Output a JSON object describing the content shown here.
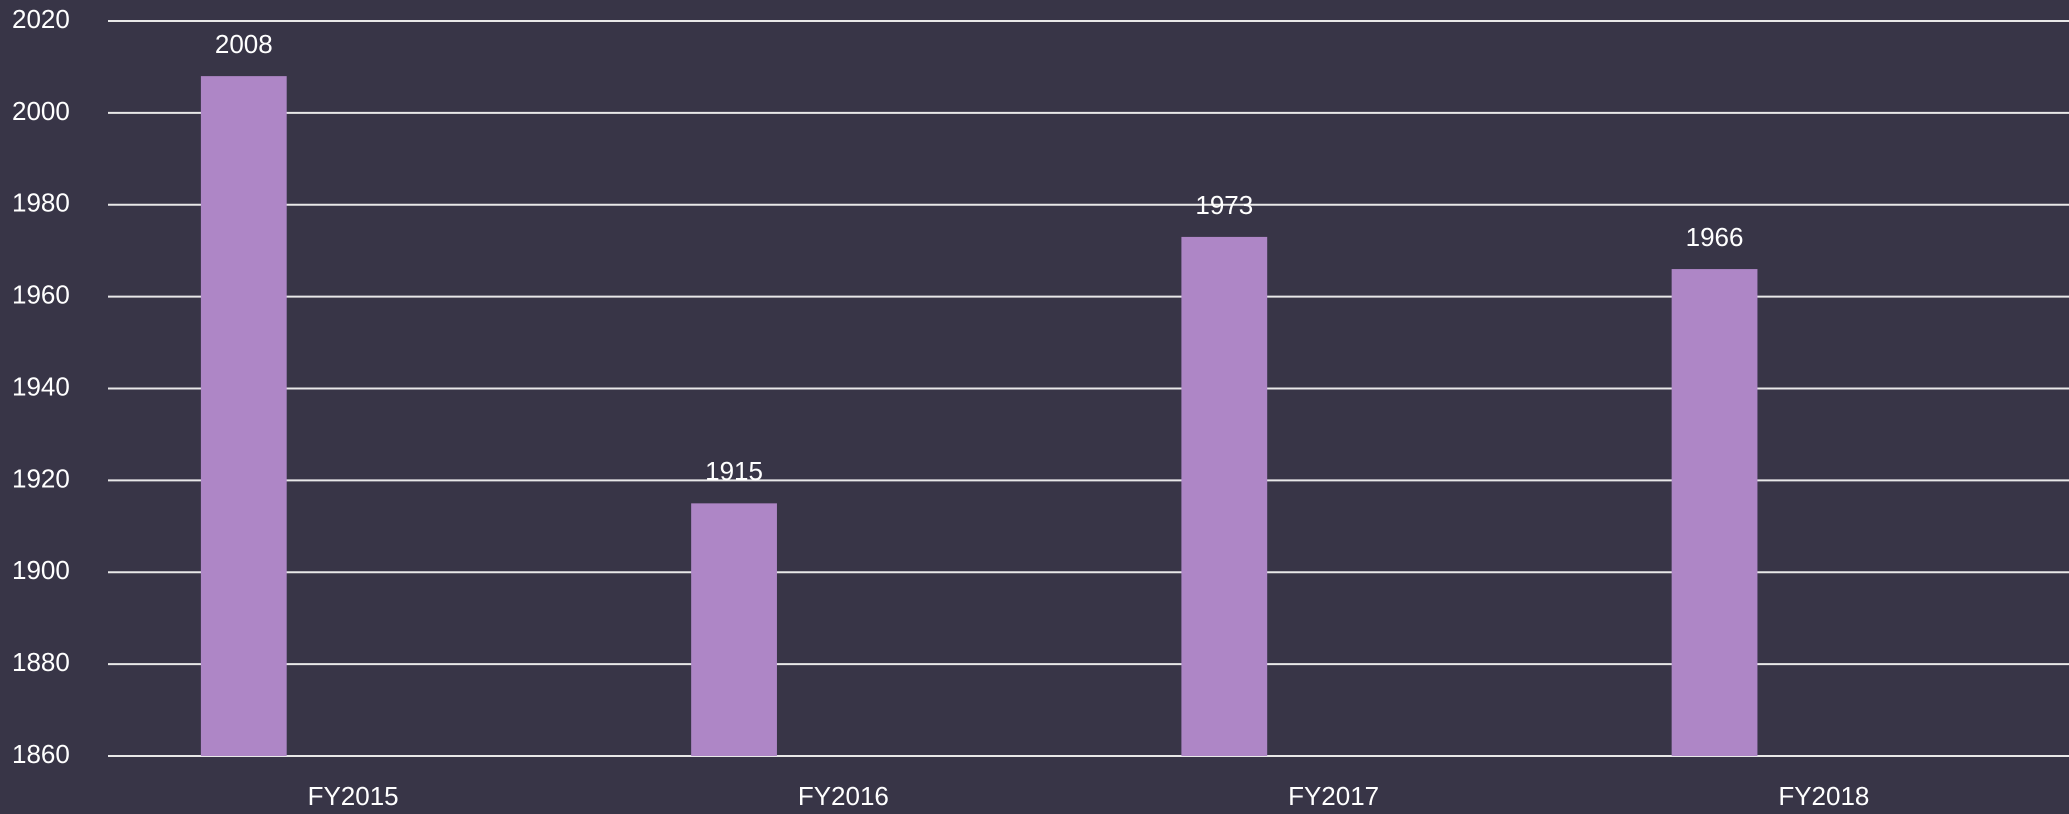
{
  "chart_data": {
    "type": "bar",
    "categories": [
      "FY2015",
      "FY2016",
      "FY2017",
      "FY2018"
    ],
    "values": [
      2008,
      1915,
      1973,
      1966
    ],
    "color": "#ae86c6",
    "ylim": [
      1860,
      2020
    ],
    "yticks": [
      1860,
      1880,
      1900,
      1920,
      1940,
      1960,
      1980,
      2000,
      2020
    ],
    "grid": true
  }
}
